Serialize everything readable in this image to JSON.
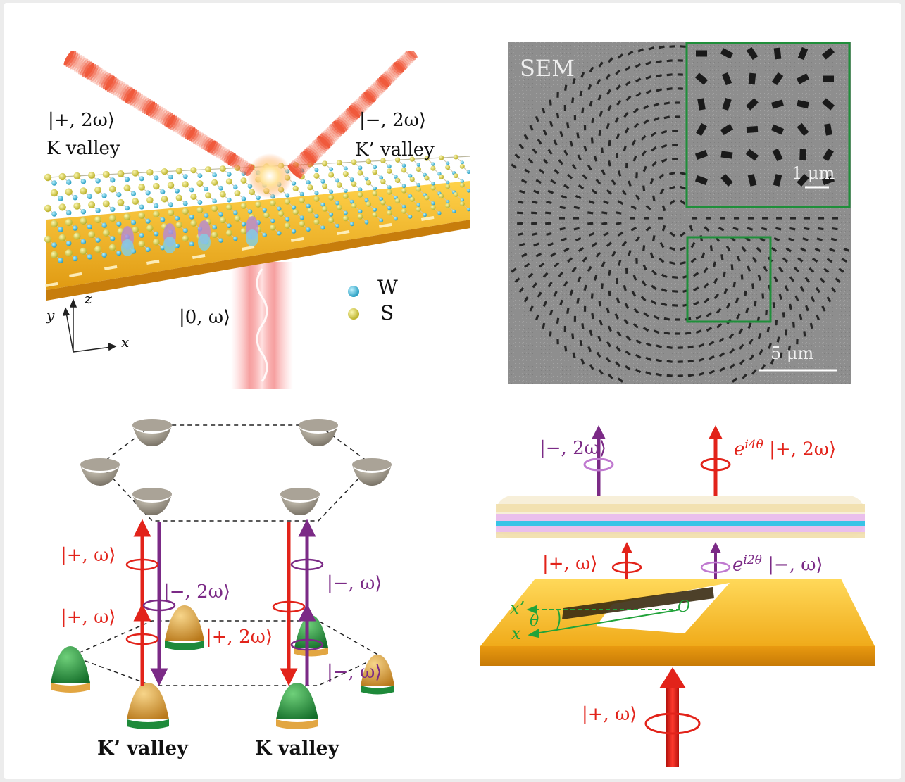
{
  "panel_a": {
    "label_plus_2w": "|+, 2ω⟩",
    "label_k_valley": "K valley",
    "label_minus_2w": "|−, 2ω⟩",
    "label_kp_valley": "K’ valley",
    "label_zero_w": "|0, ω⟩",
    "legend_w": "W",
    "legend_s": "S",
    "axis_x": "x",
    "axis_y": "y",
    "axis_z": "z",
    "exciton_e": "e",
    "exciton_h": "h",
    "colors": {
      "gold": "#f2b225",
      "w_atom": "#2fb5d6",
      "s_atom": "#d8cf3a",
      "beam": "#f05a3c"
    }
  },
  "panel_b": {
    "title": "SEM",
    "inset_scale": "1 μm",
    "main_scale": "5 μm",
    "colors": {
      "frame": "#1f8f3a",
      "background": "#8c8c8c",
      "holes": "#262626"
    }
  },
  "panel_c": {
    "label_plus_w_1": "|+, ω⟩",
    "label_plus_w_2": "|+, ω⟩",
    "label_minus_2w": "|−, 2ω⟩",
    "label_plus_2w": "|+, 2ω⟩",
    "label_minus_w_1": "|−, ω⟩",
    "label_minus_w_2": "|−, ω⟩",
    "label_kp_valley": "K’ valley",
    "label_k_valley": "K valley",
    "colors": {
      "red": "#e2231a",
      "purple": "#7b2a86",
      "green": "#1e8a3a",
      "orange": "#d89b2e",
      "gray": "#8d8679"
    }
  },
  "panel_d": {
    "label_minus_2w": "|−, 2ω⟩",
    "label_phase_4": "e",
    "label_phase_4_sup": "i4θ",
    "label_plus_2w": "|+, 2ω⟩",
    "label_plus_w": "|+, ω⟩",
    "label_phase_2": "e",
    "label_phase_2_sup": "i2θ",
    "label_minus_w": "|−, ω⟩",
    "label_x_prime": "x’",
    "label_theta": "θ",
    "label_x": "x",
    "label_o": "O",
    "label_input": "|+, ω⟩",
    "colors": {
      "red": "#e2231a",
      "purple": "#7b2a86",
      "green": "#21a33a",
      "gold": "#f2b225"
    }
  }
}
